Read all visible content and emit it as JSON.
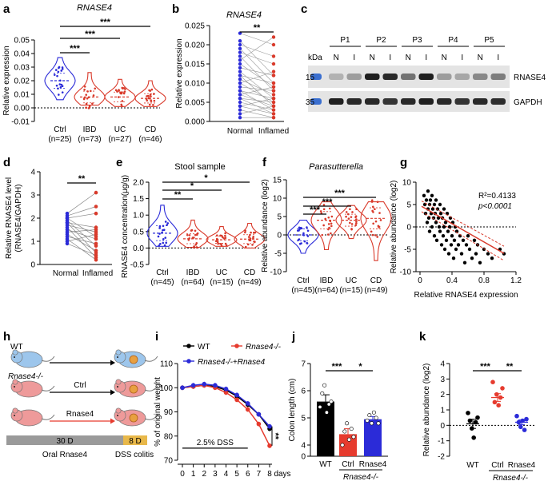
{
  "figure": {
    "panel_labels": [
      "a",
      "b",
      "c",
      "d",
      "e",
      "f",
      "g",
      "h",
      "i",
      "j",
      "k"
    ]
  },
  "chart_data": [
    {
      "panel": "a",
      "type": "violin",
      "title": "RNASE4",
      "ylabel": "Relative expression",
      "ylim": [
        -0.01,
        0.05
      ],
      "yticks": [
        "0.05",
        "0.04",
        "0.03",
        "0.02",
        "0.01",
        "0.00",
        "-0.01"
      ],
      "categories": [
        "Ctrl",
        "IBD",
        "UC",
        "CD"
      ],
      "n_labels": [
        "(n=25)",
        "(n=73)",
        "(n=27)",
        "(n=46)"
      ],
      "medians": [
        0.02,
        0.008,
        0.008,
        0.007
      ],
      "ranges": [
        [
          0.006,
          0.037
        ],
        [
          0.002,
          0.026
        ],
        [
          0.001,
          0.021
        ],
        [
          0.001,
          0.02
        ]
      ],
      "colors": [
        "#2b2bd8",
        "#d93a2b",
        "#d93a2b",
        "#d93a2b"
      ],
      "significance": [
        {
          "pair": [
            "Ctrl",
            "IBD"
          ],
          "label": "***"
        },
        {
          "pair": [
            "Ctrl",
            "UC"
          ],
          "label": "***"
        },
        {
          "pair": [
            "Ctrl",
            "CD"
          ],
          "label": "***"
        }
      ]
    },
    {
      "panel": "b",
      "type": "paired_dot",
      "title": "RNASE4",
      "ylabel": "Relative expression",
      "ylim": [
        0,
        0.025
      ],
      "yticks": [
        "0.025",
        "0.020",
        "0.015",
        "0.010",
        "0.005",
        "0.000"
      ],
      "categories": [
        "Normal",
        "Inflamed"
      ],
      "pairs": [
        [
          0.023,
          0.02
        ],
        [
          0.021,
          0.012
        ],
        [
          0.02,
          0.017
        ],
        [
          0.019,
          0.01
        ],
        [
          0.018,
          0.015
        ],
        [
          0.017,
          0.008
        ],
        [
          0.016,
          0.022
        ],
        [
          0.015,
          0.009
        ],
        [
          0.014,
          0.012
        ],
        [
          0.013,
          0.006
        ],
        [
          0.012,
          0.01
        ],
        [
          0.012,
          0.004
        ],
        [
          0.011,
          0.007
        ],
        [
          0.01,
          0.013
        ],
        [
          0.01,
          0.005
        ],
        [
          0.009,
          0.008
        ],
        [
          0.008,
          0.003
        ],
        [
          0.008,
          0.006
        ],
        [
          0.007,
          0.009
        ],
        [
          0.007,
          0.004
        ],
        [
          0.006,
          0.002
        ],
        [
          0.006,
          0.005
        ],
        [
          0.005,
          0.003
        ],
        [
          0.004,
          0.006
        ],
        [
          0.004,
          0.002
        ],
        [
          0.003,
          0.001
        ],
        [
          0.002,
          0.004
        ],
        [
          0.001,
          0.001
        ]
      ],
      "colors": [
        "#2b2bd8",
        "#d93a2b"
      ],
      "significance": [
        {
          "pair": [
            "Normal",
            "Inflamed"
          ],
          "label": "**"
        }
      ]
    },
    {
      "panel": "c",
      "type": "western_blot",
      "samples": [
        "P1",
        "P2",
        "P3",
        "P4",
        "P5"
      ],
      "lane_labels": [
        "N",
        "I",
        "N",
        "I",
        "N",
        "I",
        "N",
        "I",
        "N",
        "I"
      ],
      "kda_label": "kDa",
      "bands": [
        {
          "kda": "15",
          "name": "RNASE4",
          "intensity": [
            0.25,
            0.35,
            0.95,
            0.9,
            0.55,
            0.95,
            0.35,
            0.3,
            0.45,
            0.5
          ]
        },
        {
          "kda": "35",
          "name": "GAPDH",
          "intensity": [
            0.95,
            0.9,
            0.9,
            0.85,
            0.9,
            0.95,
            0.9,
            0.85,
            0.9,
            0.88
          ]
        }
      ]
    },
    {
      "panel": "d",
      "type": "paired_dot",
      "ylabel": "Relative RNASE4 level (RNASE4/GAPDH)",
      "ylim": [
        0,
        4
      ],
      "yticks": [
        "4",
        "3",
        "2",
        "1",
        "0"
      ],
      "categories": [
        "Normal",
        "Inflamed"
      ],
      "pairs": [
        [
          2.2,
          3.1
        ],
        [
          2.1,
          2.5
        ],
        [
          2.0,
          1.2
        ],
        [
          2.0,
          2.2
        ],
        [
          1.9,
          0.8
        ],
        [
          1.8,
          1.6
        ],
        [
          1.8,
          0.5
        ],
        [
          1.7,
          1.4
        ],
        [
          1.6,
          0.3
        ],
        [
          1.5,
          1.1
        ],
        [
          1.4,
          1.5
        ],
        [
          1.3,
          0.6
        ],
        [
          1.2,
          0.9
        ],
        [
          1.1,
          0.2
        ],
        [
          1.0,
          1.3
        ],
        [
          0.9,
          0.4
        ]
      ],
      "colors": [
        "#2b2bd8",
        "#d93a2b"
      ],
      "significance": [
        {
          "pair": [
            "Normal",
            "Inflamed"
          ],
          "label": "**"
        }
      ]
    },
    {
      "panel": "e",
      "type": "violin",
      "title": "Stool sample",
      "ylabel": "RNASE4 concentration(μg/g)",
      "ylim": [
        -0.5,
        2.0
      ],
      "yticks": [
        "2.0",
        "1.5",
        "1.0",
        "0.5",
        "0.0",
        "-0.5"
      ],
      "categories": [
        "Ctrl",
        "IBD",
        "UC",
        "CD"
      ],
      "n_labels": [
        "(n=45)",
        "(n=64)",
        "(n=15)",
        "(n=49)"
      ],
      "medians": [
        0.45,
        0.28,
        0.25,
        0.27
      ],
      "ranges": [
        [
          0.05,
          1.3
        ],
        [
          0.02,
          0.85
        ],
        [
          0.05,
          0.65
        ],
        [
          0.0,
          0.75
        ]
      ],
      "colors": [
        "#2b2bd8",
        "#d93a2b",
        "#d93a2b",
        "#d93a2b"
      ],
      "significance": [
        {
          "pair": [
            "Ctrl",
            "IBD"
          ],
          "label": "**"
        },
        {
          "pair": [
            "Ctrl",
            "UC"
          ],
          "label": "*"
        },
        {
          "pair": [
            "Ctrl",
            "CD"
          ],
          "label": "*"
        }
      ]
    },
    {
      "panel": "f",
      "type": "violin",
      "title": "Parasutterella",
      "ylabel": "Relative abundance (log2)",
      "ylim": [
        -10,
        15
      ],
      "yticks": [
        "15",
        "10",
        "5",
        "0",
        "-5",
        "-10"
      ],
      "categories": [
        "Ctrl",
        "IBD",
        "UC",
        "CD"
      ],
      "n_labels": [
        "(n=45)",
        "(n=64)",
        "(n=15)",
        "(n=49)"
      ],
      "medians": [
        0.0,
        4.0,
        4.0,
        4.5
      ],
      "ranges": [
        [
          -5,
          4
        ],
        [
          -4,
          9
        ],
        [
          -1,
          8
        ],
        [
          -7,
          9
        ]
      ],
      "colors": [
        "#2b2bd8",
        "#d93a2b",
        "#d93a2b",
        "#d93a2b"
      ],
      "significance": [
        {
          "pair": [
            "Ctrl",
            "IBD"
          ],
          "label": "***"
        },
        {
          "pair": [
            "Ctrl",
            "UC"
          ],
          "label": "***"
        },
        {
          "pair": [
            "Ctrl",
            "CD"
          ],
          "label": "***"
        }
      ]
    },
    {
      "panel": "g",
      "type": "scatter",
      "xlabel": "Relative RNASE4 expression",
      "ylabel": "Relative abundance (log2)",
      "xlim": [
        -0.05,
        1.2
      ],
      "ylim": [
        -10,
        10
      ],
      "xticks": [
        "0",
        "0.4",
        "0.8",
        "1.2"
      ],
      "yticks": [
        "10",
        "5",
        "0",
        "-5",
        "-10"
      ],
      "annotation_r2": "R²=0.4133",
      "annotation_p": "p<0.0001",
      "fit": {
        "slope": -10.2,
        "intercept": 4.8
      },
      "points": [
        [
          0.05,
          7
        ],
        [
          0.06,
          5
        ],
        [
          0.07,
          3
        ],
        [
          0.08,
          6
        ],
        [
          0.09,
          1
        ],
        [
          0.1,
          4
        ],
        [
          0.1,
          8
        ],
        [
          0.11,
          2
        ],
        [
          0.12,
          5
        ],
        [
          0.12,
          -1
        ],
        [
          0.13,
          6
        ],
        [
          0.14,
          3
        ],
        [
          0.15,
          0
        ],
        [
          0.15,
          7
        ],
        [
          0.16,
          4
        ],
        [
          0.17,
          2
        ],
        [
          0.18,
          5
        ],
        [
          0.18,
          -2
        ],
        [
          0.19,
          3
        ],
        [
          0.2,
          6
        ],
        [
          0.2,
          1
        ],
        [
          0.21,
          -3
        ],
        [
          0.22,
          4
        ],
        [
          0.23,
          2
        ],
        [
          0.24,
          0
        ],
        [
          0.25,
          5
        ],
        [
          0.25,
          -1
        ],
        [
          0.26,
          3
        ],
        [
          0.27,
          -4
        ],
        [
          0.28,
          2
        ],
        [
          0.29,
          -2
        ],
        [
          0.3,
          4
        ],
        [
          0.3,
          0
        ],
        [
          0.31,
          -5
        ],
        [
          0.32,
          1
        ],
        [
          0.33,
          -3
        ],
        [
          0.34,
          3
        ],
        [
          0.35,
          -1
        ],
        [
          0.36,
          -6
        ],
        [
          0.37,
          0
        ],
        [
          0.38,
          2
        ],
        [
          0.39,
          -4
        ],
        [
          0.4,
          -2
        ],
        [
          0.41,
          1
        ],
        [
          0.42,
          -7
        ],
        [
          0.43,
          -3
        ],
        [
          0.44,
          0
        ],
        [
          0.45,
          -5
        ],
        [
          0.46,
          -1
        ],
        [
          0.48,
          -4
        ],
        [
          0.5,
          -2
        ],
        [
          0.52,
          -6
        ],
        [
          0.54,
          -3
        ],
        [
          0.56,
          -8
        ],
        [
          0.58,
          -4
        ],
        [
          0.6,
          -2
        ],
        [
          0.62,
          -5
        ],
        [
          0.65,
          -7
        ],
        [
          0.68,
          -3
        ],
        [
          0.7,
          -6
        ],
        [
          0.72,
          -4
        ],
        [
          0.75,
          -8
        ],
        [
          0.8,
          -5
        ],
        [
          0.85,
          -6
        ],
        [
          0.9,
          -7
        ],
        [
          1.0,
          -5
        ],
        [
          1.05,
          -6
        ]
      ],
      "colors": [
        "#000000",
        "#d93a2b"
      ]
    },
    {
      "panel": "h",
      "type": "diagram",
      "groups": [
        "WT",
        "Rnase4-/-",
        "Rnase4-/-"
      ],
      "arrow_labels": [
        "",
        "Ctrl",
        "Rnase4"
      ],
      "timeline": [
        {
          "label": "30 D",
          "color": "#9a9a9a"
        },
        {
          "label": "8 D",
          "color": "#e8b84a"
        }
      ],
      "timeline_captions": [
        "Oral Rnase4",
        "DSS colitis"
      ]
    },
    {
      "panel": "i",
      "type": "line",
      "ylabel": "% of original weight",
      "xlabel": "days",
      "ylim": [
        70,
        110
      ],
      "yticks": [
        "110",
        "100",
        "90",
        "80",
        "70"
      ],
      "x": [
        0,
        1,
        2,
        3,
        4,
        5,
        6,
        7,
        8
      ],
      "xticks": [
        "0",
        "1",
        "2",
        "3",
        "4",
        "5",
        "6",
        "7",
        "8"
      ],
      "legend": [
        "WT",
        "Rnase4-/-",
        "Rnase4-/-+Rnase4"
      ],
      "series": [
        {
          "name": "WT",
          "color": "#000000",
          "values": [
            100,
            100.5,
            101,
            100.5,
            99,
            96.5,
            93,
            89,
            83
          ]
        },
        {
          "name": "Rnase4-/-",
          "color": "#e63b2e",
          "values": [
            100,
            100.5,
            101,
            100,
            98,
            95,
            91,
            85,
            76
          ]
        },
        {
          "name": "Rnase4-/-+Rnase4",
          "color": "#2b2bd8",
          "values": [
            100,
            101,
            101.5,
            101,
            99.5,
            97,
            93.5,
            89,
            84
          ]
        }
      ],
      "dss_label": "2.5% DSS",
      "significance": "**"
    },
    {
      "panel": "j",
      "type": "bar",
      "ylabel": "Colon length (cm)",
      "ylim": [
        0,
        7
      ],
      "yticks": [
        "7",
        "6",
        "5",
        "4",
        "0"
      ],
      "categories": [
        "WT",
        "Ctrl",
        "Rnase4"
      ],
      "group_label": "Rnase4-/-",
      "values": [
        5.6,
        4.4,
        4.95
      ],
      "errors": [
        0.25,
        0.2,
        0.1
      ],
      "points": [
        [
          5.4,
          5.9,
          6.2,
          5.2,
          5.5,
          5.6
        ],
        [
          4.0,
          4.5,
          4.8,
          4.2,
          4.6,
          4.3
        ],
        [
          4.9,
          5.1,
          4.8,
          5.2,
          5.0,
          4.8
        ]
      ],
      "colors": [
        "#000000",
        "#e63b2e",
        "#2b2bd8"
      ],
      "significance": [
        {
          "pair": [
            "WT",
            "Ctrl"
          ],
          "label": "***"
        },
        {
          "pair": [
            "Ctrl",
            "Rnase4"
          ],
          "label": "*"
        }
      ]
    },
    {
      "panel": "k",
      "type": "dot_mean",
      "ylabel": "Relative abundance (log2)",
      "ylim": [
        -2,
        4
      ],
      "yticks": [
        "4",
        "3",
        "2",
        "1",
        "0",
        "-1",
        "-2"
      ],
      "categories": [
        "WT",
        "Ctrl",
        "Rnase4"
      ],
      "group_label": "Rnase4-/-",
      "means": [
        0.1,
        1.8,
        0.2
      ],
      "errors": [
        0.3,
        0.25,
        0.15
      ],
      "points": [
        [
          0.8,
          0.3,
          -0.2,
          -0.8,
          0.2,
          0.5
        ],
        [
          2.8,
          1.5,
          2.0,
          1.3,
          1.8,
          2.4
        ],
        [
          0.6,
          0.2,
          -0.1,
          0.3,
          -0.3,
          0.4
        ]
      ],
      "colors": [
        "#000000",
        "#e63b2e",
        "#2b2bd8"
      ],
      "significance": [
        {
          "pair": [
            "WT",
            "Ctrl"
          ],
          "label": "***"
        },
        {
          "pair": [
            "Ctrl",
            "Rnase4"
          ],
          "label": "**"
        }
      ]
    }
  ]
}
